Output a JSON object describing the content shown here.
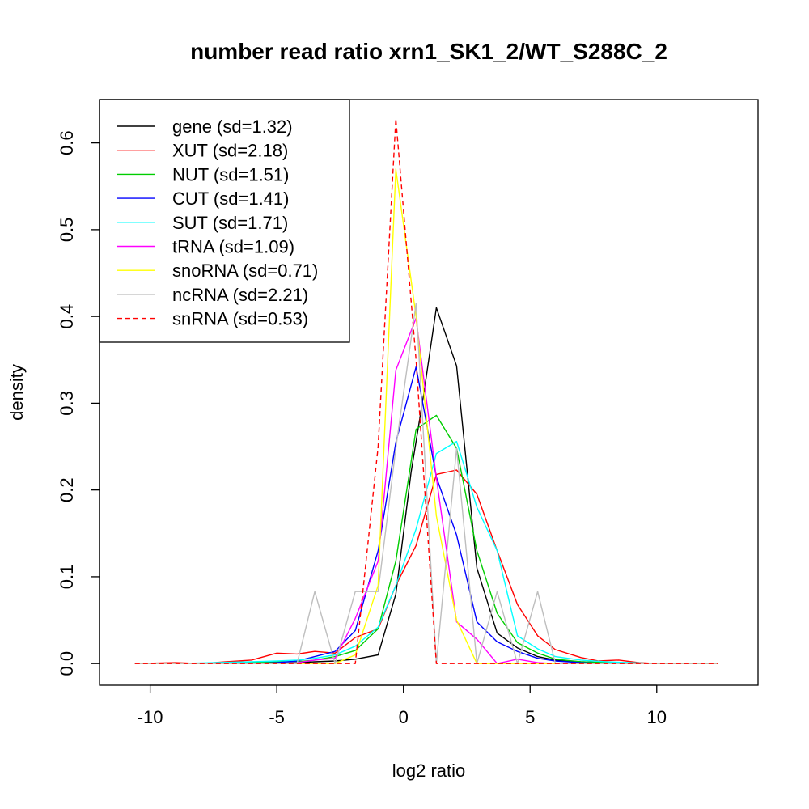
{
  "chart_data": {
    "type": "line",
    "title": "number read ratio xrn1_SK1_2/WT_S288C_2",
    "xlabel": "log2 ratio",
    "ylabel": "density",
    "xlim": [
      -12,
      14
    ],
    "ylim": [
      -0.025,
      0.65
    ],
    "x_ticks": [
      -10,
      -5,
      0,
      5,
      10
    ],
    "x_tick_labels": [
      "-10",
      "-5",
      "0",
      "5",
      "10"
    ],
    "y_ticks": [
      0.0,
      0.1,
      0.2,
      0.3,
      0.4,
      0.5,
      0.6
    ],
    "y_tick_labels": [
      "0.0",
      "0.1",
      "0.2",
      "0.3",
      "0.4",
      "0.5",
      "0.6"
    ],
    "grid": false,
    "legend_position": "top-left",
    "series": [
      {
        "name": "gene (sd=1.32)",
        "color": "#000000",
        "dash": false,
        "x": [
          -10.6,
          -9.0,
          -7.5,
          -6.0,
          -5.0,
          -4.2,
          -3.5,
          -2.7,
          -1.9,
          -1.0,
          -0.3,
          0.3,
          0.8,
          1.3,
          2.1,
          2.9,
          3.7,
          4.5,
          5.3,
          6.0,
          7.0,
          8.0,
          9.0,
          10.0,
          12.4
        ],
        "y": [
          0.0,
          0.0,
          0.0,
          0.0,
          0.0,
          0.001,
          0.002,
          0.003,
          0.005,
          0.01,
          0.08,
          0.22,
          0.31,
          0.41,
          0.343,
          0.11,
          0.035,
          0.018,
          0.008,
          0.004,
          0.002,
          0.001,
          0.0,
          0.0,
          0.0
        ]
      },
      {
        "name": "XUT (sd=2.18)",
        "color": "#ff0000",
        "dash": false,
        "x": [
          -10.6,
          -9.0,
          -8.0,
          -7.0,
          -6.0,
          -5.0,
          -4.2,
          -3.5,
          -2.7,
          -1.9,
          -1.0,
          -0.3,
          0.5,
          1.3,
          2.1,
          2.9,
          3.7,
          4.5,
          5.3,
          6.0,
          7.0,
          7.7,
          8.5,
          9.3,
          10.0,
          12.4
        ],
        "y": [
          0.0,
          0.001,
          0.0,
          0.002,
          0.004,
          0.012,
          0.011,
          0.014,
          0.012,
          0.03,
          0.04,
          0.09,
          0.136,
          0.218,
          0.223,
          0.195,
          0.13,
          0.068,
          0.032,
          0.016,
          0.007,
          0.003,
          0.004,
          0.001,
          0.0,
          0.0
        ]
      },
      {
        "name": "NUT (sd=1.51)",
        "color": "#00cd00",
        "dash": false,
        "x": [
          -10.6,
          -9.0,
          -7.5,
          -6.0,
          -5.0,
          -4.2,
          -3.5,
          -2.7,
          -1.9,
          -1.0,
          -0.3,
          0.5,
          1.3,
          2.1,
          2.9,
          3.7,
          4.5,
          5.3,
          6.0,
          7.0,
          8.0,
          9.0,
          10.0,
          12.4
        ],
        "y": [
          0.0,
          0.0,
          0.0,
          0.001,
          0.002,
          0.002,
          0.004,
          0.008,
          0.015,
          0.04,
          0.118,
          0.27,
          0.286,
          0.248,
          0.13,
          0.058,
          0.024,
          0.012,
          0.005,
          0.002,
          0.001,
          0.0,
          0.0,
          0.0
        ]
      },
      {
        "name": "CUT (sd=1.41)",
        "color": "#0000ff",
        "dash": false,
        "x": [
          -10.6,
          -9.0,
          -7.5,
          -6.0,
          -5.0,
          -4.2,
          -3.5,
          -2.7,
          -1.9,
          -1.0,
          -0.3,
          0.5,
          1.3,
          2.1,
          2.9,
          3.7,
          4.5,
          5.3,
          6.0,
          7.0,
          8.0,
          9.0,
          10.0,
          12.4
        ],
        "y": [
          0.0,
          0.0,
          0.0,
          0.0,
          0.001,
          0.003,
          0.008,
          0.014,
          0.038,
          0.13,
          0.255,
          0.342,
          0.215,
          0.148,
          0.048,
          0.025,
          0.014,
          0.006,
          0.003,
          0.001,
          0.0,
          0.0,
          0.0,
          0.0
        ]
      },
      {
        "name": "SUT (sd=1.71)",
        "color": "#00ffff",
        "dash": false,
        "x": [
          -10.6,
          -9.0,
          -7.5,
          -6.0,
          -5.0,
          -4.2,
          -3.5,
          -2.7,
          -1.9,
          -1.0,
          -0.3,
          0.5,
          1.3,
          2.1,
          2.9,
          3.7,
          4.5,
          5.3,
          6.0,
          7.0,
          8.0,
          9.0,
          10.0,
          12.4
        ],
        "y": [
          0.0,
          0.0,
          0.001,
          0.002,
          0.003,
          0.004,
          0.006,
          0.01,
          0.02,
          0.042,
          0.09,
          0.155,
          0.242,
          0.256,
          0.18,
          0.13,
          0.032,
          0.017,
          0.008,
          0.004,
          0.002,
          0.001,
          0.0,
          0.0
        ]
      },
      {
        "name": "tRNA (sd=1.09)",
        "color": "#ff00ff",
        "dash": false,
        "x": [
          -10.6,
          -9.0,
          -7.5,
          -6.0,
          -5.0,
          -4.2,
          -3.5,
          -2.7,
          -1.9,
          -1.0,
          -0.3,
          0.5,
          1.3,
          2.1,
          2.9,
          3.7,
          4.5,
          5.3,
          6.0,
          7.0,
          8.0,
          9.0,
          10.0,
          12.4
        ],
        "y": [
          0.0,
          0.0,
          0.0,
          0.0,
          0.0,
          0.001,
          0.004,
          0.006,
          0.052,
          0.118,
          0.338,
          0.398,
          0.214,
          0.048,
          0.028,
          0.0,
          0.005,
          0.001,
          0.0,
          0.0,
          0.0,
          0.0,
          0.0,
          0.0
        ]
      },
      {
        "name": "snoRNA (sd=0.71)",
        "color": "#ffff00",
        "dash": false,
        "x": [
          -10.6,
          -5.0,
          -3.5,
          -2.7,
          -1.9,
          -1.0,
          -0.3,
          0.5,
          1.3,
          2.1,
          2.9,
          3.7,
          12.4
        ],
        "y": [
          0.0,
          0.0,
          0.0,
          0.0,
          0.01,
          0.09,
          0.57,
          0.4,
          0.17,
          0.05,
          0.0,
          0.0,
          0.0
        ]
      },
      {
        "name": "ncRNA (sd=2.21)",
        "color": "#bebebe",
        "dash": false,
        "x": [
          -10.6,
          -9.0,
          -7.5,
          -6.0,
          -5.0,
          -4.2,
          -3.5,
          -2.7,
          -1.9,
          -1.0,
          -0.3,
          0.5,
          1.3,
          2.1,
          2.9,
          3.7,
          4.5,
          5.3,
          6.0,
          7.0,
          8.0,
          9.0,
          10.0,
          12.4
        ],
        "y": [
          0.0,
          0.0,
          0.0,
          0.0,
          0.0,
          0.0,
          0.083,
          0.0,
          0.083,
          0.083,
          0.248,
          0.415,
          0.0,
          0.248,
          0.0,
          0.083,
          0.0,
          0.083,
          0.0,
          0.0,
          0.0,
          0.0,
          0.0,
          0.0
        ]
      },
      {
        "name": "snRNA (sd=0.53)",
        "color": "#ff0000",
        "dash": true,
        "x": [
          -10.6,
          -5.0,
          -2.7,
          -1.9,
          -1.0,
          -0.3,
          0.5,
          1.3,
          2.1,
          12.4
        ],
        "y": [
          0.0,
          0.0,
          0.0,
          0.0,
          0.25,
          0.628,
          0.35,
          0.0,
          0.0,
          0.0
        ]
      }
    ]
  }
}
